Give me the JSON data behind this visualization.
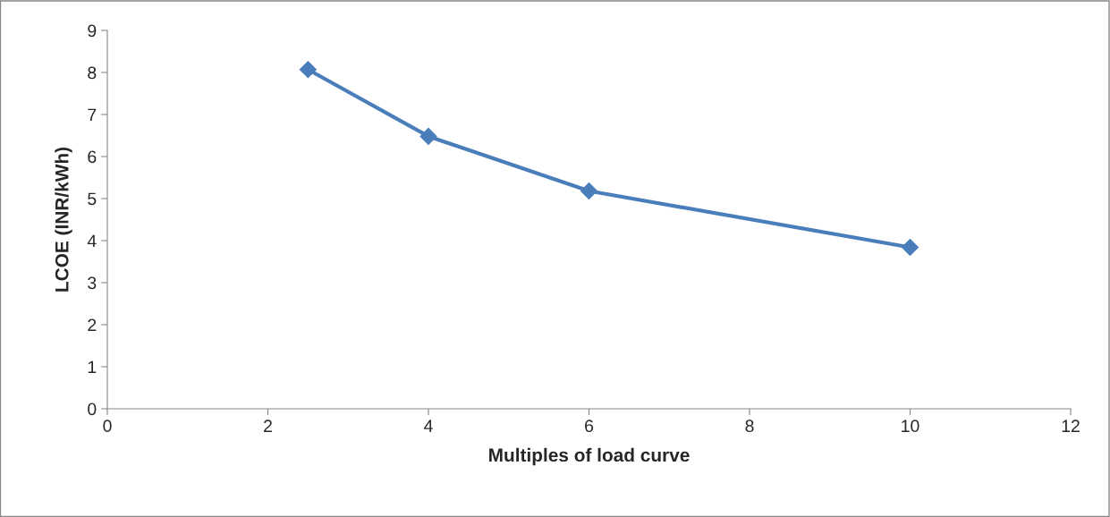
{
  "chart_data": {
    "type": "line",
    "xlabel": "Multiples of load curve",
    "ylabel": "LCOE (INR/kWh)",
    "x": [
      2.5,
      4,
      6,
      10
    ],
    "series": [
      {
        "color": "#4a7ebb",
        "values": [
          8.07,
          6.48,
          5.18,
          3.84
        ]
      }
    ],
    "xlim": [
      0,
      12
    ],
    "xticks": [
      0,
      2,
      4,
      6,
      8,
      10,
      12
    ],
    "ylim": [
      0,
      9
    ],
    "yticks": [
      0,
      1,
      2,
      3,
      4,
      5,
      6,
      7,
      8,
      9
    ],
    "grid": false,
    "marker": "diamond",
    "line_style": "solid"
  }
}
